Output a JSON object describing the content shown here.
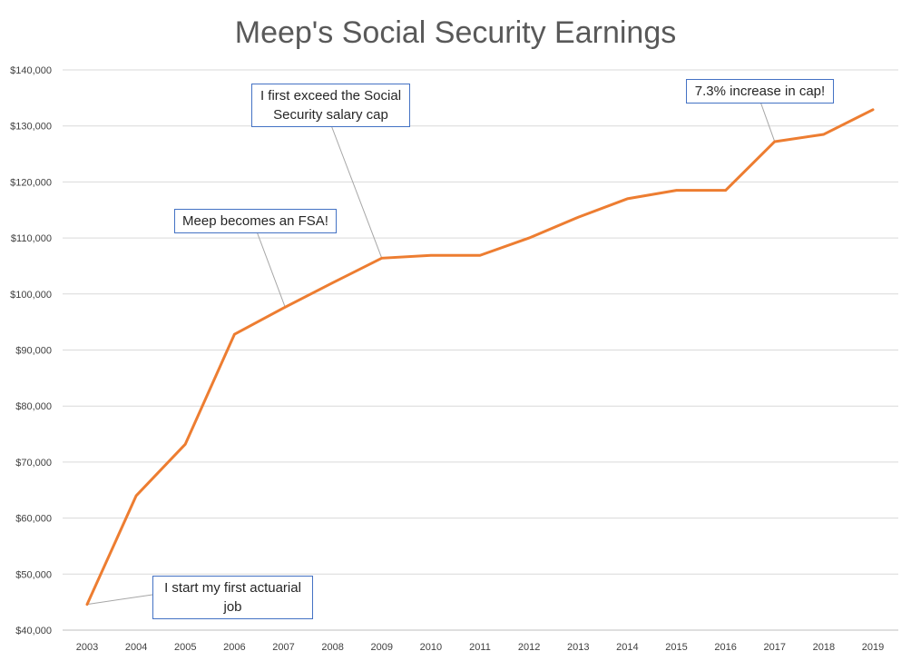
{
  "chart_data": {
    "type": "line",
    "title": "Meep's Social Security Earnings",
    "xlabel": "",
    "ylabel": "",
    "categories": [
      "2003",
      "2004",
      "2005",
      "2006",
      "2007",
      "2008",
      "2009",
      "2010",
      "2011",
      "2012",
      "2013",
      "2014",
      "2015",
      "2016",
      "2017",
      "2018",
      "2019"
    ],
    "series": [
      {
        "name": "",
        "color": "#ed7d31",
        "values": [
          44600,
          64000,
          73200,
          92800,
          97500,
          102000,
          106400,
          106900,
          106900,
          110000,
          113700,
          117000,
          118500,
          118500,
          127200,
          128500,
          132900
        ]
      }
    ],
    "ylim": [
      40000,
      140000
    ],
    "yticks": [
      40000,
      50000,
      60000,
      70000,
      80000,
      90000,
      100000,
      110000,
      120000,
      130000,
      140000
    ],
    "ytick_labels": [
      "$40,000",
      "$50,000",
      "$60,000",
      "$70,000",
      "$80,000",
      "$90,000",
      "$100,000",
      "$110,000",
      "$120,000",
      "$130,000",
      "$140,000"
    ],
    "grid": true,
    "annotations": [
      {
        "text_lines": [
          "I start my first actuarial",
          "job"
        ],
        "x": "2003",
        "y": 44600
      },
      {
        "text_lines": [
          "Meep becomes an FSA!"
        ],
        "x": "2007",
        "y": 97500
      },
      {
        "text_lines": [
          "I first exceed the Social",
          "Security salary cap"
        ],
        "x": "2009",
        "y": 106400
      },
      {
        "text_lines": [
          "7.3% increase in cap!"
        ],
        "x": "2017",
        "y": 127200
      }
    ]
  }
}
